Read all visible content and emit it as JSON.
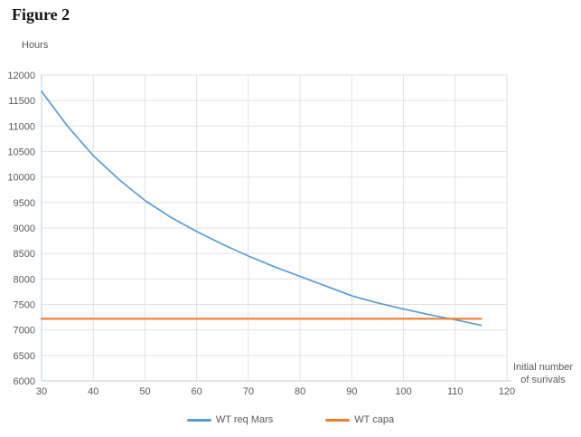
{
  "figure_title": "Figure 2",
  "chart_data": {
    "type": "line",
    "title": "",
    "ylabel": "Hours",
    "xlabel": "Initial number of surivals",
    "xlabel_lines": [
      "Initial number",
      "of surivals"
    ],
    "xlim": [
      30,
      120
    ],
    "ylim": [
      6000,
      12000
    ],
    "x_ticks": [
      30,
      40,
      50,
      60,
      70,
      80,
      90,
      100,
      110,
      120
    ],
    "y_ticks": [
      6000,
      6500,
      7000,
      7500,
      8000,
      8500,
      9000,
      9500,
      10000,
      10500,
      11000,
      11500,
      12000
    ],
    "grid": true,
    "legend_position": "bottom",
    "x": [
      30,
      35,
      40,
      45,
      50,
      55,
      60,
      65,
      70,
      75,
      80,
      85,
      90,
      95,
      100,
      105,
      110,
      115
    ],
    "series": [
      {
        "name": "WT req Mars",
        "color": "#5B9BD5",
        "values": [
          11680,
          11000,
          10420,
          9950,
          9540,
          9210,
          8930,
          8680,
          8450,
          8240,
          8050,
          7860,
          7670,
          7530,
          7410,
          7300,
          7200,
          7090
        ]
      },
      {
        "name": "WT capa",
        "color": "#ED7D31",
        "values": [
          7220,
          7220,
          7220,
          7220,
          7220,
          7220,
          7220,
          7220,
          7220,
          7220,
          7220,
          7220,
          7220,
          7220,
          7220,
          7220,
          7220,
          7220
        ]
      }
    ]
  },
  "colors": {
    "gridline": "#e2e2e2",
    "axis_line": "#bccde4",
    "tick_label": "#595959",
    "title_text": "#161616"
  }
}
